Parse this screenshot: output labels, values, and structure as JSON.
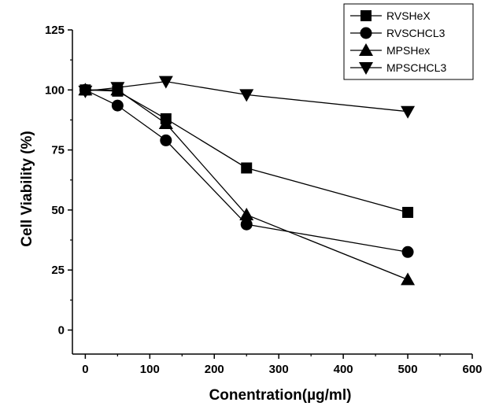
{
  "chart_data": {
    "type": "line",
    "xlabel": "Conentration(µg/ml)",
    "ylabel": "Cell Viability (%)",
    "xlim": [
      -20,
      600
    ],
    "ylim": [
      -10,
      125
    ],
    "xticks": [
      0,
      100,
      200,
      300,
      400,
      500,
      600
    ],
    "yticks": [
      0,
      25,
      50,
      75,
      100,
      125
    ],
    "x": [
      0,
      50,
      125,
      250,
      500
    ],
    "legend_position": "top-right",
    "grid": false,
    "series": [
      {
        "name": "RVSHeX",
        "marker": "square",
        "values": [
          100,
          99.5,
          88,
          67.5,
          49
        ]
      },
      {
        "name": "RVSCHCL3",
        "marker": "circle",
        "values": [
          100,
          93.5,
          79,
          44,
          32.5
        ]
      },
      {
        "name": "MPSHex",
        "marker": "triangle-up",
        "values": [
          100,
          100,
          86,
          48,
          21
        ]
      },
      {
        "name": "MPSCHCL3",
        "marker": "triangle-down",
        "values": [
          99.5,
          101,
          103.5,
          98,
          91
        ]
      }
    ]
  }
}
